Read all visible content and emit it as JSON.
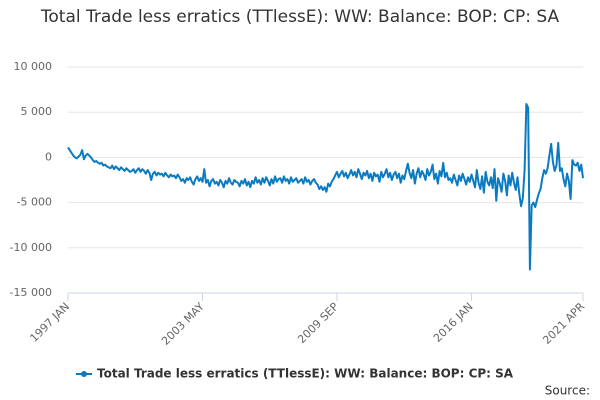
{
  "chart_data": {
    "type": "line",
    "title": "Total Trade less erratics (TTlessE): WW: Balance: BOP: CP: SA",
    "source": "Source:",
    "categories": [
      "1997 JAN",
      null,
      null,
      null,
      null,
      null,
      null,
      null,
      null,
      null,
      null,
      null,
      null,
      null,
      null,
      null,
      null,
      null,
      null,
      null,
      null,
      null,
      null,
      null,
      null,
      null,
      null,
      null,
      null,
      null,
      null,
      null,
      null,
      null,
      null,
      null,
      null,
      null,
      null,
      null,
      null,
      null,
      null,
      null,
      null,
      null,
      null,
      null,
      null,
      null,
      null,
      null,
      null,
      null,
      null,
      null,
      null,
      null,
      null,
      null,
      null,
      null,
      null,
      null,
      null,
      null,
      null,
      null,
      null,
      null,
      null,
      null,
      null,
      null,
      null,
      null,
      "2003 MAY",
      null,
      null,
      null,
      null,
      null,
      null,
      null,
      null,
      null,
      null,
      null,
      null,
      null,
      null,
      null,
      null,
      null,
      null,
      null,
      null,
      null,
      null,
      null,
      null,
      null,
      null,
      null,
      null,
      null,
      null,
      null,
      null,
      null,
      null,
      null,
      null,
      null,
      null,
      null,
      null,
      null,
      null,
      null,
      null,
      null,
      null,
      null,
      null,
      null,
      null,
      null,
      null,
      null,
      null,
      null,
      null,
      null,
      null,
      null,
      null,
      null,
      null,
      null,
      null,
      null,
      null,
      null,
      null,
      null,
      null,
      null,
      null,
      null,
      null,
      null,
      "2009 SEP",
      null,
      null,
      null,
      null,
      null,
      null,
      null,
      null,
      null,
      null,
      null,
      null,
      null,
      null,
      null,
      null,
      null,
      null,
      null,
      null,
      null,
      null,
      null,
      null,
      null,
      null,
      null,
      null,
      null,
      null,
      null,
      null,
      null,
      null,
      null,
      null,
      null,
      null,
      null,
      null,
      null,
      null,
      null,
      null,
      null,
      null,
      null,
      null,
      null,
      null,
      null,
      null,
      null,
      null,
      null,
      null,
      null,
      null,
      null,
      null,
      null,
      null,
      null,
      null,
      null,
      null,
      null,
      null,
      null,
      null,
      null,
      null,
      null,
      null,
      null,
      "2016 JAN",
      null,
      null,
      null,
      null,
      null,
      null,
      null,
      null,
      null,
      null,
      null,
      null,
      null,
      null,
      null,
      null,
      null,
      null,
      null,
      null,
      null,
      null,
      null,
      null,
      null,
      null,
      null,
      null,
      null,
      null,
      null,
      null,
      null,
      null,
      null,
      null,
      null,
      null,
      null,
      null,
      null,
      null,
      null,
      null,
      null,
      null,
      null,
      null,
      null,
      null,
      null,
      null,
      null,
      null,
      null,
      null,
      null,
      null,
      null,
      null,
      null,
      null,
      "2021 APR"
    ],
    "series": [
      {
        "name": "Total Trade less erratics (TTlessE): WW: Balance: BOP: CP: SA",
        "color": "#0b7bc1",
        "values": [
          1100,
          800,
          500,
          200,
          0,
          -100,
          100,
          300,
          800,
          -200,
          200,
          400,
          200,
          0,
          -300,
          -500,
          -400,
          -600,
          -700,
          -600,
          -900,
          -800,
          -1000,
          -1100,
          -1200,
          -900,
          -1300,
          -1000,
          -1200,
          -1400,
          -1100,
          -1300,
          -1500,
          -1200,
          -1400,
          -1600,
          -1500,
          -1300,
          -1700,
          -1400,
          -1200,
          -1600,
          -1300,
          -1500,
          -1800,
          -1400,
          -1700,
          -2500,
          -1800,
          -1600,
          -2000,
          -1700,
          -1900,
          -1800,
          -2100,
          -1700,
          -2000,
          -2200,
          -1900,
          -2100,
          -2000,
          -2300,
          -1900,
          -2200,
          -2600,
          -2400,
          -2800,
          -2300,
          -2500,
          -2200,
          -2700,
          -3000,
          -2400,
          -2100,
          -2600,
          -2300,
          -2700,
          -1300,
          -2800,
          -2500,
          -3200,
          -2600,
          -2400,
          -2900,
          -2700,
          -3100,
          -2500,
          -2800,
          -3300,
          -2600,
          -2900,
          -2300,
          -2800,
          -3000,
          -2500,
          -2700,
          -2800,
          -3200,
          -2600,
          -2900,
          -2400,
          -3100,
          -2700,
          -3300,
          -2600,
          -2900,
          -2200,
          -2800,
          -2500,
          -3000,
          -2300,
          -2800,
          -2200,
          -2600,
          -3100,
          -2400,
          -2900,
          -2100,
          -2700,
          -2400,
          -2300,
          -2800,
          -2100,
          -2600,
          -2400,
          -2900,
          -2200,
          -2700,
          -2500,
          -2300,
          -2800,
          -2600,
          -2400,
          -2900,
          -2200,
          -2700,
          -2500,
          -3000,
          -2600,
          -2400,
          -2800,
          -3000,
          -3500,
          -3200,
          -3600,
          -3300,
          -3800,
          -2900,
          -3200,
          -2700,
          -2400,
          -2000,
          -1600,
          -2200,
          -1800,
          -1500,
          -2100,
          -1700,
          -2300,
          -1900,
          -1400,
          -2000,
          -1600,
          -2200,
          -1300,
          -1800,
          -2400,
          -1700,
          -2000,
          -1500,
          -2300,
          -1800,
          -2600,
          -1700,
          -2100,
          -1900,
          -2700,
          -1600,
          -2200,
          -1800,
          -1300,
          -2200,
          -1700,
          -2500,
          -1900,
          -1600,
          -2300,
          -1800,
          -2800,
          -2000,
          -2400,
          -1500,
          -700,
          -1700,
          -2300,
          -1400,
          -2900,
          -1800,
          -1200,
          -2200,
          -1500,
          -1900,
          -2500,
          -1300,
          -2000,
          -1600,
          -800,
          -2400,
          -1800,
          -2900,
          -1500,
          -2100,
          -600,
          -2200,
          -1700,
          -2500,
          -2300,
          -2800,
          -1900,
          -2500,
          -3100,
          -2000,
          -2600,
          -1800,
          -2400,
          -3000,
          -2200,
          -2700,
          -1900,
          -2600,
          -3300,
          -1400,
          -2800,
          -3500,
          -2100,
          -3900,
          -1600,
          -2700,
          -3100,
          -2200,
          -3400,
          -1300,
          -4800,
          -2300,
          -2900,
          -3800,
          -1800,
          -2600,
          -4200,
          -2000,
          -3100,
          -1700,
          -2800,
          -3600,
          -2200,
          -4000,
          -5400,
          -4500,
          -1400,
          5900,
          5500,
          -12400,
          -5300,
          -5000,
          -5500,
          -4700,
          -4000,
          -3500,
          -2300,
          -1400,
          -1800,
          -1200,
          200,
          1500,
          -500,
          -1500,
          -900,
          1600,
          -1500,
          -1200,
          -2400,
          -3200,
          -1800,
          -2600,
          -4600,
          -300,
          -800,
          -900,
          -600,
          -1500,
          -800,
          -2300
        ]
      }
    ],
    "ylim": [
      -15000,
      10000
    ],
    "yticks": [
      {
        "value": -15000,
        "label": "-15 000"
      },
      {
        "value": -10000,
        "label": "-10 000"
      },
      {
        "value": -5000,
        "label": "-5 000"
      },
      0,
      {
        "value": 5000,
        "label": "5 000"
      },
      {
        "value": 10000,
        "label": "10 000"
      }
    ],
    "grid": true,
    "legend": "bottom"
  }
}
